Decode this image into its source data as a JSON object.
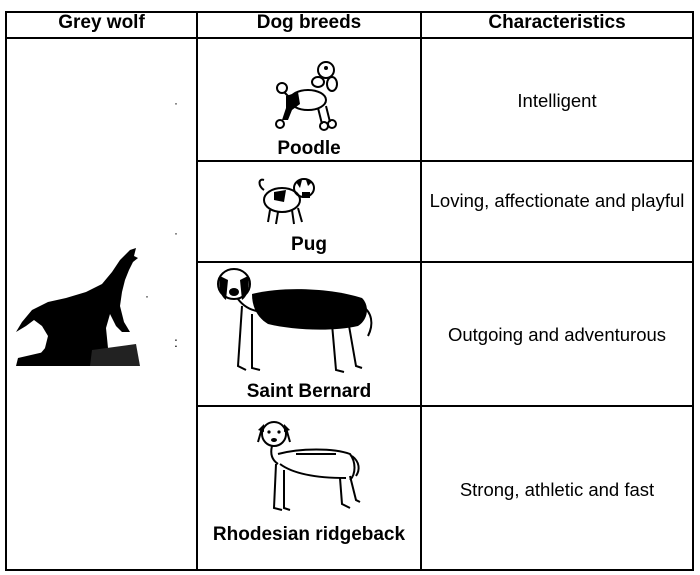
{
  "table": {
    "headers": [
      "Grey wolf",
      "Dog breeds",
      "Characteristics"
    ],
    "wolf_icon": "howling-wolf-silhouette",
    "rows": [
      {
        "breed": "Poodle",
        "icon": "poodle-icon",
        "characteristic": "Intelligent"
      },
      {
        "breed": "Pug",
        "icon": "pug-icon",
        "characteristic": "Loving, affectionate and playful"
      },
      {
        "breed": "Saint Bernard",
        "icon": "saint-bernard-icon",
        "characteristic": "Outgoing and adventurous"
      },
      {
        "breed": "Rhodesian ridgeback",
        "icon": "rhodesian-ridgeback-icon",
        "characteristic": "Strong, athletic and fast"
      }
    ]
  }
}
